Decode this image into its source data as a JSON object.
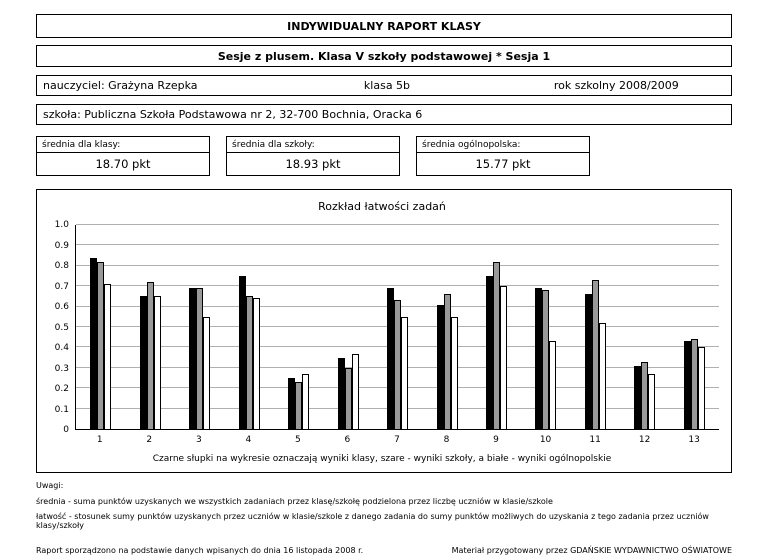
{
  "header": {
    "title": "INDYWIDUALNY RAPORT KLASY"
  },
  "subheader": {
    "title": "Sesje z plusem. Klasa V szkoły podstawowej  *  Sesja 1"
  },
  "info": {
    "teacher": "nauczyciel: Grażyna Rzepka",
    "class": "klasa 5b",
    "year": "rok szkolny 2008/2009"
  },
  "school": {
    "line": "szkoła: Publiczna Szkoła Podstawowa nr 2, 32-700 Bochnia, Oracka 6"
  },
  "averages": [
    {
      "label": "średnia dla klasy:",
      "value": "18.70 pkt"
    },
    {
      "label": "średnia dla szkoły:",
      "value": "18.93 pkt"
    },
    {
      "label": "średnia ogólnopolska:",
      "value": "15.77 pkt"
    }
  ],
  "chart_data": {
    "type": "bar",
    "title": "Rozkład łatwości zadań",
    "categories": [
      "1",
      "2",
      "3",
      "4",
      "5",
      "6",
      "7",
      "8",
      "9",
      "10",
      "11",
      "12",
      "13"
    ],
    "series": [
      {
        "key": "klasa",
        "name": "wyniki klasy",
        "color": "#000000",
        "values": [
          0.84,
          0.65,
          0.69,
          0.75,
          0.25,
          0.35,
          0.69,
          0.61,
          0.75,
          0.69,
          0.66,
          0.31,
          0.43
        ]
      },
      {
        "key": "szkola",
        "name": "wyniki szkoły",
        "color": "#999999",
        "values": [
          0.82,
          0.72,
          0.69,
          0.65,
          0.23,
          0.3,
          0.63,
          0.66,
          0.82,
          0.68,
          0.73,
          0.33,
          0.44
        ]
      },
      {
        "key": "ogolnopolskie",
        "name": "wyniki ogólnopolskie",
        "color": "#ffffff",
        "values": [
          0.71,
          0.65,
          0.55,
          0.64,
          0.27,
          0.37,
          0.55,
          0.55,
          0.7,
          0.43,
          0.52,
          0.27,
          0.4
        ]
      }
    ],
    "ylim": [
      0,
      1.0
    ],
    "yticks": [
      "1.0",
      "0.9",
      "0.8",
      "0.7",
      "0.6",
      "0.5",
      "0.4",
      "0.3",
      "0.2",
      "0.1",
      "0"
    ],
    "grid": "horizontal",
    "legend_position": "caption",
    "caption": "Czarne słupki na wykresie oznaczają wyniki klasy, szare - wyniki szkoły, a białe - wyniki ogólnopolskie"
  },
  "notes": {
    "heading": "Uwagi:",
    "line1": "średnia - suma punktów uzyskanych we wszystkich zadaniach przez klasę/szkołę podzielona przez liczbę uczniów w klasie/szkole",
    "line2": "łatwość - stosunek sumy punktów uzyskanych przez uczniów w klasie/szkole z danego zadania do sumy punktów możliwych do uzyskania z tego zadania przez uczniów klasy/szkoły"
  },
  "footer": {
    "left": "Raport sporządzono na podstawie danych wpisanych do dnia 16 listopada 2008 r.",
    "right": "Materiał przygotowany przez GDAŃSKIE WYDAWNICTWO OŚWIATOWE"
  }
}
